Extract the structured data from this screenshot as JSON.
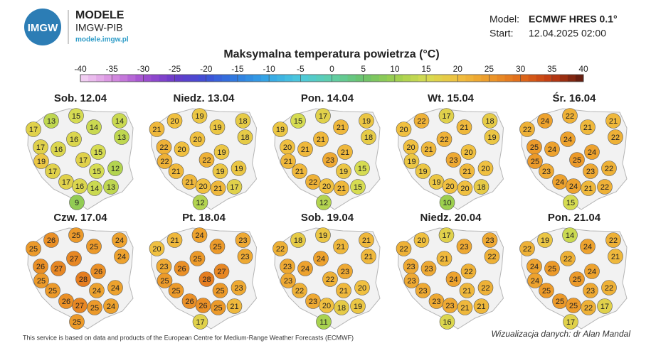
{
  "header": {
    "logo": "IMGW",
    "brand": "MODELE",
    "org": "IMGW-PIB",
    "url": "modele.imgw.pl",
    "model_label": "Model:",
    "model": "ECMWF HRES 0.1°",
    "start_label": "Start:",
    "start": "12.04.2025 02:00"
  },
  "title": "Maksymalna temperatura powietrza (°C)",
  "colorbar": {
    "ticks": [
      -40,
      -35,
      -30,
      -25,
      -20,
      -15,
      -10,
      -5,
      0,
      5,
      10,
      15,
      20,
      25,
      30,
      35,
      40
    ],
    "colors": [
      "#f4d6f4",
      "#d88fe0",
      "#a24fd0",
      "#6a3ac8",
      "#3d4fd6",
      "#2f7ee0",
      "#35a8e6",
      "#4dc9dc",
      "#5fcfa8",
      "#6cc26a",
      "#9ccf4e",
      "#d6dc52",
      "#f0c040",
      "#ec9a2a",
      "#e06a1a",
      "#c03a12",
      "#5a1a10"
    ]
  },
  "maps": [
    {
      "title": "Sob. 12.04",
      "values": [
        13,
        15,
        14,
        17,
        14,
        16,
        13,
        17,
        16,
        15,
        19,
        17,
        12,
        17,
        15,
        17,
        16,
        14,
        13,
        9
      ]
    },
    {
      "title": "Niedz. 13.04",
      "values": [
        20,
        19,
        18,
        21,
        19,
        20,
        18,
        22,
        20,
        19,
        22,
        22,
        19,
        21,
        19,
        21,
        20,
        21,
        17,
        12
      ]
    },
    {
      "title": "Pon. 14.04",
      "values": [
        15,
        17,
        19,
        19,
        21,
        21,
        18,
        20,
        21,
        21,
        21,
        23,
        15,
        21,
        19,
        22,
        20,
        21,
        15,
        12
      ]
    },
    {
      "title": "Wt. 15.04",
      "values": [
        22,
        17,
        18,
        20,
        21,
        22,
        19,
        20,
        21,
        20,
        19,
        23,
        20,
        19,
        21,
        19,
        20,
        20,
        18,
        10
      ]
    },
    {
      "title": "Śr. 16.04",
      "values": [
        24,
        22,
        21,
        22,
        21,
        24,
        22,
        25,
        24,
        24,
        25,
        25,
        22,
        23,
        23,
        24,
        24,
        21,
        22,
        15
      ]
    },
    {
      "title": "Czw. 17.04",
      "values": [
        26,
        25,
        24,
        25,
        25,
        27,
        24,
        26,
        27,
        26,
        25,
        28,
        24,
        25,
        24,
        26,
        27,
        25,
        24,
        25
      ]
    },
    {
      "title": "Pt. 18.04",
      "values": [
        21,
        24,
        23,
        20,
        25,
        25,
        23,
        23,
        26,
        27,
        25,
        28,
        23,
        25,
        25,
        26,
        26,
        25,
        21,
        17
      ]
    },
    {
      "title": "Sob. 19.04",
      "values": [
        18,
        19,
        21,
        22,
        21,
        24,
        21,
        23,
        24,
        23,
        23,
        22,
        20,
        22,
        21,
        23,
        20,
        18,
        19,
        11
      ]
    },
    {
      "title": "Niedz. 20.04",
      "values": [
        20,
        17,
        23,
        22,
        23,
        21,
        22,
        23,
        23,
        22,
        23,
        24,
        22,
        23,
        21,
        23,
        23,
        21,
        21,
        16
      ]
    },
    {
      "title": "Pon. 21.04",
      "values": [
        19,
        14,
        22,
        22,
        24,
        22,
        21,
        24,
        25,
        24,
        24,
        25,
        22,
        25,
        23,
        25,
        25,
        22,
        17,
        17
      ]
    }
  ],
  "footer": {
    "source": "This service is based on data and products of the European Centre for Medium-Range Weather Forecasts (ECMWF)",
    "credit": "Wizualizacja danych: dr Alan Mandal"
  }
}
